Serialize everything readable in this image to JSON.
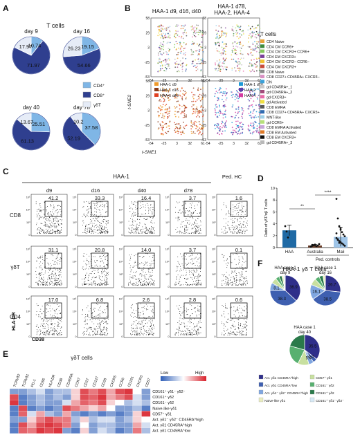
{
  "panels": {
    "A": {
      "letter": "A",
      "title": "T cells",
      "colors": {
        "CD4": "#7fb6e6",
        "CD8": "#2f3f8f",
        "gdT": "#e6ecf7"
      },
      "legend": [
        "CD4⁺",
        "CD8⁺",
        "γδT"
      ],
      "pies": [
        {
          "label": "day 9",
          "values": [
            10.74,
            71.97,
            17.97
          ],
          "labels": [
            "10.74",
            "71.97",
            "17.97"
          ]
        },
        {
          "label": "day 16",
          "values": [
            19.15,
            54.66,
            26.23
          ],
          "labels": [
            "19.15",
            "54.66",
            "26.23"
          ]
        },
        {
          "label": "day 40",
          "values": [
            25.51,
            61.13,
            13.67
          ],
          "labels": [
            "25.51",
            "61.13",
            "13.67"
          ]
        },
        {
          "label": "day 78",
          "values": [
            37.58,
            52.19,
            10.2
          ],
          "labels": [
            "37.58",
            "52.19",
            "10.2"
          ]
        }
      ]
    },
    "B": {
      "letter": "B",
      "title_left": "HAA-1 d9, d16, d40",
      "title_right_1": "HAA-1 d78,",
      "title_right_2": "HAA-2, HAA-4",
      "xlabel": "t-SNE1",
      "ylabel": "t-SNE2",
      "ticks": [
        "-54",
        "-25",
        "3",
        "32",
        "61"
      ],
      "yticks": [
        "58",
        "29",
        "3",
        "-25",
        "-53"
      ],
      "legend_title": "T cells",
      "legend": [
        {
          "label": "CD4 Naive",
          "color": "#e8a33a"
        },
        {
          "label": "CD4 CM CCR6+",
          "color": "#3c8a3c"
        },
        {
          "label": "CD4 CM CXCR3+ CCR6+",
          "color": "#86c75a"
        },
        {
          "label": "CD4 EM CXCR3+",
          "color": "#7a3e9a"
        },
        {
          "label": "CD4 CM CXCR3− CCR6−",
          "color": "#f2c230"
        },
        {
          "label": "CD4 CM CXCR3+",
          "color": "#c84a3a"
        },
        {
          "label": "CD8 Naive",
          "color": "#8a8a8a"
        },
        {
          "label": "CD8 CD27+ CD45RA+ CXCR3−",
          "color": "#d98fc3"
        },
        {
          "label": "DN",
          "color": "#3aa0d8"
        },
        {
          "label": "gd CD45RA+_1",
          "color": "#c9c9c9"
        },
        {
          "label": "gd CD45RA+_2",
          "color": "#a34a7a"
        },
        {
          "label": "gd CXCR3+",
          "color": "#e86aa8"
        },
        {
          "label": "gd Activated",
          "color": "#f0e040"
        },
        {
          "label": "CD8 EMRA",
          "color": "#5a5a5a"
        },
        {
          "label": "CD8 CD27+ CD45RA+ CXCR3+",
          "color": "#2f6ab0"
        },
        {
          "label": "MNT-like",
          "color": "#9fd0e8"
        },
        {
          "label": "gd CCR6+",
          "color": "#b7e07a"
        },
        {
          "label": "CD8 EMRA Activated",
          "color": "#c6a6d9"
        },
        {
          "label": "CD8 EM Activated",
          "color": "#e07a28"
        },
        {
          "label": "CD8 EM CXCR3+",
          "color": "#111111"
        },
        {
          "label": "gd CD45RA+_3",
          "color": "#b9b9b9"
        }
      ],
      "legend_bl": [
        {
          "label": "HAA-1 d9",
          "color": "#f09a2a"
        },
        {
          "label": "HAA-1 d16",
          "color": "#8a3a18"
        },
        {
          "label": "HAA-1 d40",
          "color": "#e04020"
        }
      ],
      "legend_br": [
        {
          "label": "HAA-1 d78",
          "color": "#1f9ad6"
        },
        {
          "label": "HAA-2",
          "color": "#5b3fa8"
        },
        {
          "label": "HAA-4",
          "color": "#d43aa0"
        }
      ]
    },
    "C": {
      "letter": "C",
      "group": "HAA-1",
      "group2": "Ped. HC",
      "columns": [
        "d9",
        "d16",
        "d40",
        "d78",
        ""
      ],
      "rows": [
        {
          "label": "CD8",
          "values": [
            "41.2",
            "33.3",
            "16.4",
            "3.7",
            "1.6"
          ]
        },
        {
          "label": "γδT",
          "values": [
            "31.1",
            "20.8",
            "14.0",
            "3.7",
            "0.1"
          ]
        },
        {
          "label": "CD4",
          "values": [
            "17.0",
            "6.8",
            "2.6",
            "2.8",
            "0.6"
          ]
        }
      ],
      "xlabel": "CD38",
      "ylabel": "HLA-DR",
      "tick_labels": [
        "0",
        "10³",
        "10⁴",
        "10⁵"
      ]
    },
    "D": {
      "letter": "D",
      "chart_data": {
        "type": "bar",
        "categories": [
          "HAA",
          "Australia",
          "Mali"
        ],
        "values": [
          2.9,
          0.35,
          1.8
        ],
        "errors": [
          0.9,
          0.15,
          1.6
        ],
        "points": {
          "HAA": [
            3.6,
            2.7,
            1.7
          ],
          "Australia": [
            0.2,
            0.3,
            0.4,
            0.5,
            0.25,
            0.35,
            0.6,
            0.15,
            0.45
          ],
          "Mali": [
            8.2,
            4.9,
            3.6,
            3.0,
            2.6,
            2.2,
            1.9,
            1.6,
            1.3,
            1.1,
            0.9,
            0.7,
            0.5,
            0.3,
            2.4,
            1.4,
            0.8,
            3.3
          ]
        },
        "ylabel": "Ratio of γδT/αβ T cells",
        "ylim": [
          0,
          10
        ],
        "yticks": [
          "0",
          "2",
          "4",
          "6",
          "8",
          "10"
        ],
        "group_label": "Ped. controls",
        "sig1": "**",
        "sig2": "****",
        "colors": {
          "HAA": "#1f6aa5",
          "Australia": "#6b3f2a",
          "Mali": "#9fc5e8"
        }
      }
    },
    "E": {
      "letter": "E",
      "title": "γδT cells",
      "low": "Low",
      "high": "High",
      "columns": [
        "TCRVδ2",
        "TCRVδ1",
        "PD-1",
        "CD95",
        "HLA DR",
        "CD38",
        "CD45RA",
        "CCR7",
        "CD27",
        "CD127",
        "CD28",
        "CXCR5",
        "CCR6",
        "CD161",
        "CXCR3",
        "CD57"
      ],
      "rows": [
        "CD161⁺ γδ1⁻ γδ2⁻",
        "CD161⁺ γδ2",
        "CD161⁻ γδ2",
        "Naive-like γδ1",
        "CD57⁺ γδ1",
        "Act. γδ1⁻ γδ2⁻ CD45RA^high",
        "Act. γδ1 CD45RA^high",
        "Act. γδ1 CD45RA^low"
      ],
      "heat": [
        [
          0.2,
          0.2,
          0.3,
          0.4,
          0.2,
          0.3,
          0.3,
          0.6,
          0.9,
          0.8,
          0.9,
          0.7,
          0.9,
          0.95,
          0.5,
          0.2
        ],
        [
          0.9,
          0.1,
          0.2,
          0.3,
          0.2,
          0.3,
          0.2,
          0.6,
          0.9,
          0.85,
          0.95,
          0.7,
          0.8,
          0.9,
          0.4,
          0.2
        ],
        [
          0.95,
          0.1,
          0.2,
          0.3,
          0.2,
          0.2,
          0.4,
          0.7,
          0.85,
          0.8,
          0.9,
          0.6,
          0.5,
          0.3,
          0.4,
          0.3
        ],
        [
          0.1,
          0.9,
          0.1,
          0.2,
          0.1,
          0.2,
          0.9,
          0.8,
          0.7,
          0.6,
          0.7,
          0.5,
          0.2,
          0.2,
          0.3,
          0.1
        ],
        [
          0.1,
          0.85,
          0.4,
          0.7,
          0.3,
          0.2,
          0.7,
          0.2,
          0.1,
          0.2,
          0.1,
          0.2,
          0.1,
          0.2,
          0.6,
          0.95
        ],
        [
          0.2,
          0.2,
          0.6,
          0.8,
          0.9,
          0.8,
          0.8,
          0.3,
          0.6,
          0.3,
          0.4,
          0.4,
          0.2,
          0.3,
          0.6,
          0.5
        ],
        [
          0.1,
          0.9,
          0.7,
          0.9,
          0.95,
          0.9,
          0.8,
          0.2,
          0.5,
          0.2,
          0.3,
          0.3,
          0.2,
          0.2,
          0.7,
          0.4
        ],
        [
          0.1,
          0.85,
          0.8,
          0.95,
          0.9,
          0.95,
          0.2,
          0.1,
          0.6,
          0.2,
          0.4,
          0.3,
          0.1,
          0.2,
          0.8,
          0.3
        ]
      ]
    },
    "F": {
      "letter": "F",
      "title": "HAA-1 γδ T cells",
      "pies": [
        {
          "label_1": "HAA case 1",
          "label_2": "day 9",
          "values": [
            36.9,
            38.3,
            8.1,
            6,
            4,
            3,
            2,
            1.7
          ],
          "labels": [
            "36.9",
            "38.3",
            "8.1"
          ]
        },
        {
          "label_1": "HAA case 1",
          "label_2": "day 16",
          "values": [
            26.7,
            38.5,
            16.1,
            7,
            5,
            4,
            2.7
          ],
          "labels": [
            "26.7",
            "38.5",
            "16.1"
          ]
        },
        {
          "label_1": "HAA case 1",
          "label_2": "day 40",
          "values": [
            35.5,
            4.4,
            5.4,
            12,
            22,
            20.7
          ],
          "labels": [
            "35.5",
            "4.4",
            "5.4"
          ]
        }
      ],
      "colors": [
        "#2f2f8a",
        "#3e5fb0",
        "#7fa6e0",
        "#c8e0a0",
        "#58b070",
        "#2a7a4a",
        "#e9edc0",
        "#d6e9f5"
      ],
      "legend": [
        {
          "label": "Act. γδ1 CD45RA^high",
          "color": "#2f2f8a"
        },
        {
          "label": "CD57⁺ γδ1",
          "color": "#c8e0a0"
        },
        {
          "label": "Act. γδ1 CD45RA^low",
          "color": "#3e5fb0"
        },
        {
          "label": "CD161⁻ γδ2",
          "color": "#58b070"
        },
        {
          "label": "Act. γδ1⁻ γδ2⁻ CD45RA^high",
          "color": "#7fa6e0"
        },
        {
          "label": "CD161⁺ γδ2",
          "color": "#2a7a4a"
        },
        {
          "label": "Naive-like γδ1",
          "color": "#e9edc0"
        },
        {
          "label": "CD161⁺ γδ1⁻ γδ2⁻",
          "color": "#d6e9f5"
        }
      ]
    }
  }
}
